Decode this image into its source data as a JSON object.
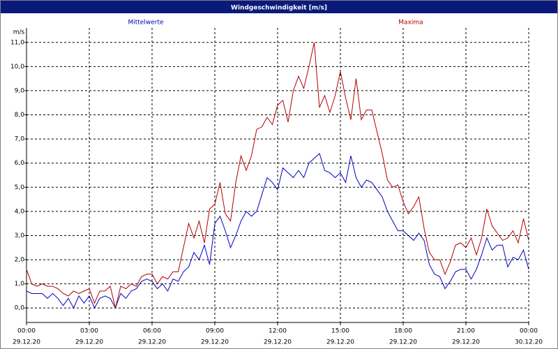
{
  "chart_data": {
    "type": "line",
    "title": "Windgeschwindigkeit [m/s]",
    "y_label": "m/s",
    "x": [
      0,
      0.25,
      0.5,
      0.75,
      1,
      1.25,
      1.5,
      1.75,
      2,
      2.25,
      2.5,
      2.75,
      3,
      3.25,
      3.5,
      3.75,
      4,
      4.25,
      4.5,
      4.75,
      5,
      5.25,
      5.5,
      5.75,
      6,
      6.25,
      6.5,
      6.75,
      7,
      7.25,
      7.5,
      7.75,
      8,
      8.25,
      8.5,
      8.75,
      9,
      9.25,
      9.5,
      9.75,
      10,
      10.25,
      10.5,
      10.75,
      11,
      11.25,
      11.5,
      11.75,
      12,
      12.25,
      12.5,
      12.75,
      13,
      13.25,
      13.5,
      13.75,
      14,
      14.25,
      14.5,
      14.75,
      15,
      15.25,
      15.5,
      15.75,
      16,
      16.25,
      16.5,
      16.75,
      17,
      17.25,
      17.5,
      17.75,
      18,
      18.25,
      18.5,
      18.75,
      19,
      19.25,
      19.5,
      19.75,
      20,
      20.25,
      20.5,
      20.75,
      21,
      21.25,
      21.5,
      21.75,
      22,
      22.25,
      22.5,
      22.75,
      23,
      23.25,
      23.5,
      23.75,
      24
    ],
    "series": [
      {
        "name": "Mittelwerte",
        "color": "#0000c0",
        "values": [
          0.7,
          0.6,
          0.6,
          0.6,
          0.4,
          0.6,
          0.4,
          0.1,
          0.4,
          0.0,
          0.5,
          0.2,
          0.5,
          0.0,
          0.4,
          0.5,
          0.4,
          0.0,
          0.6,
          0.4,
          0.7,
          0.8,
          1.1,
          1.2,
          1.1,
          0.8,
          1.0,
          0.7,
          1.2,
          1.1,
          1.5,
          1.7,
          2.3,
          2.0,
          2.6,
          1.8,
          3.5,
          3.8,
          3.2,
          2.5,
          3.0,
          3.6,
          4.0,
          3.8,
          4.0,
          4.7,
          5.4,
          5.2,
          4.9,
          5.8,
          5.6,
          5.4,
          5.7,
          5.4,
          6.0,
          6.2,
          6.4,
          5.7,
          5.6,
          5.4,
          5.6,
          5.2,
          6.3,
          5.4,
          5.0,
          5.3,
          5.2,
          4.9,
          4.6,
          4.0,
          3.6,
          3.2,
          3.2,
          3.0,
          2.8,
          3.1,
          2.8,
          1.8,
          1.4,
          1.3,
          0.8,
          1.1,
          1.5,
          1.6,
          1.6,
          1.2,
          1.6,
          2.2,
          2.9,
          2.4,
          2.6,
          2.6,
          1.7,
          2.1,
          2.0,
          2.4,
          1.6
        ]
      },
      {
        "name": "Maxima",
        "color": "#b00000",
        "values": [
          1.6,
          1.0,
          0.9,
          1.0,
          0.9,
          0.9,
          0.8,
          0.6,
          0.5,
          0.7,
          0.6,
          0.7,
          0.8,
          0.2,
          0.7,
          0.7,
          0.9,
          0.0,
          0.9,
          0.8,
          1.0,
          0.9,
          1.3,
          1.4,
          1.4,
          1.0,
          1.3,
          1.2,
          1.5,
          1.5,
          2.5,
          3.5,
          2.9,
          3.6,
          2.7,
          4.1,
          4.3,
          5.2,
          3.9,
          3.6,
          5.2,
          6.3,
          5.7,
          6.3,
          7.4,
          7.5,
          7.9,
          7.6,
          8.4,
          8.6,
          7.7,
          9.0,
          9.6,
          9.1,
          10.0,
          11.0,
          8.3,
          8.8,
          8.1,
          8.8,
          9.8,
          8.7,
          7.8,
          9.5,
          7.8,
          8.2,
          8.2,
          7.3,
          6.4,
          5.3,
          5.0,
          5.1,
          4.4,
          3.9,
          4.2,
          4.6,
          3.3,
          2.3,
          2.0,
          2.0,
          1.4,
          1.9,
          2.6,
          2.7,
          2.5,
          2.9,
          2.2,
          2.9,
          4.1,
          3.4,
          3.1,
          2.8,
          2.9,
          3.2,
          2.7,
          3.7,
          2.8
        ]
      }
    ],
    "xlim": [
      0,
      24
    ],
    "xticks": [
      {
        "value": 0,
        "label": "00:00",
        "date": "29.12.20"
      },
      {
        "value": 3,
        "label": "03:00",
        "date": "29.12.20"
      },
      {
        "value": 6,
        "label": "06:00",
        "date": "29.12.20"
      },
      {
        "value": 9,
        "label": "09:00",
        "date": "29.12.20"
      },
      {
        "value": 12,
        "label": "12:00",
        "date": "29.12.20"
      },
      {
        "value": 15,
        "label": "15:00",
        "date": "29.12.20"
      },
      {
        "value": 18,
        "label": "18:00",
        "date": "29.12.20"
      },
      {
        "value": 21,
        "label": "21:00",
        "date": "29.12.20"
      },
      {
        "value": 24,
        "label": "00:00",
        "date": "30.12.20"
      }
    ],
    "ylim": [
      -0.6,
      11.6
    ],
    "yticks": [
      {
        "value": 0,
        "label": "0,0"
      },
      {
        "value": 1,
        "label": "1,0"
      },
      {
        "value": 2,
        "label": "2,0"
      },
      {
        "value": 3,
        "label": "3,0"
      },
      {
        "value": 4,
        "label": "4,0"
      },
      {
        "value": 5,
        "label": "5,0"
      },
      {
        "value": 6,
        "label": "6,0"
      },
      {
        "value": 7,
        "label": "7,0"
      },
      {
        "value": 8,
        "label": "8,0"
      },
      {
        "value": 9,
        "label": "9,0"
      },
      {
        "value": 10,
        "label": "10,0"
      },
      {
        "value": 11,
        "label": "11,0"
      }
    ],
    "grid": true
  }
}
